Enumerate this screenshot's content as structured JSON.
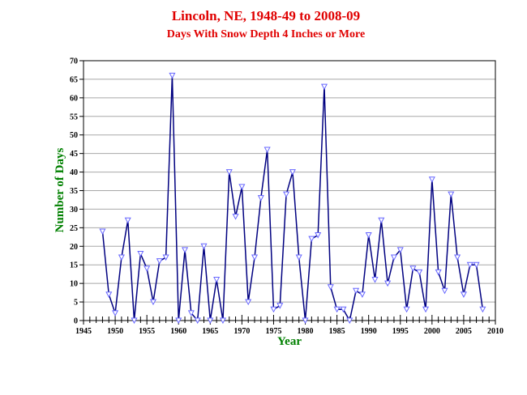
{
  "chart_data": {
    "type": "line",
    "title": "Lincoln, NE, 1948-49 to 2008-09",
    "subtitle": "Days With Snow Depth 4 Inches or More",
    "xlabel": "Year",
    "ylabel": "Number of Days",
    "xlim": [
      1945,
      2010
    ],
    "ylim": [
      0,
      70
    ],
    "x_ticks": [
      1945,
      1950,
      1955,
      1960,
      1965,
      1970,
      1975,
      1980,
      1985,
      1990,
      1995,
      2000,
      2005,
      2010
    ],
    "y_ticks": [
      0,
      5,
      10,
      15,
      20,
      25,
      30,
      35,
      40,
      45,
      50,
      55,
      60,
      65,
      70
    ],
    "grid": "horizontal",
    "line_color": "#000080",
    "marker_color": "#6666ff",
    "title_color": "#e00000",
    "label_color": "#008000",
    "x": [
      1948,
      1949,
      1950,
      1951,
      1952,
      1953,
      1954,
      1955,
      1956,
      1957,
      1958,
      1959,
      1960,
      1961,
      1962,
      1963,
      1964,
      1965,
      1966,
      1967,
      1968,
      1969,
      1970,
      1971,
      1972,
      1973,
      1974,
      1975,
      1976,
      1977,
      1978,
      1979,
      1980,
      1981,
      1982,
      1983,
      1984,
      1985,
      1986,
      1987,
      1988,
      1989,
      1990,
      1991,
      1992,
      1993,
      1994,
      1995,
      1996,
      1997,
      1998,
      1999,
      2000,
      2001,
      2002,
      2003,
      2004,
      2005,
      2006,
      2007,
      2008
    ],
    "values": [
      24,
      7,
      2,
      17,
      27,
      0,
      18,
      14,
      5,
      16,
      17,
      66,
      0,
      19,
      2,
      0,
      20,
      0,
      11,
      0,
      40,
      28,
      36,
      5,
      17,
      33,
      46,
      3,
      4,
      34,
      40,
      17,
      0,
      22,
      23,
      63,
      9,
      3,
      3,
      0,
      8,
      7,
      23,
      11,
      27,
      10,
      17,
      19,
      3,
      14,
      13,
      3,
      38,
      13,
      8,
      34,
      17,
      7,
      15,
      15,
      3
    ]
  }
}
